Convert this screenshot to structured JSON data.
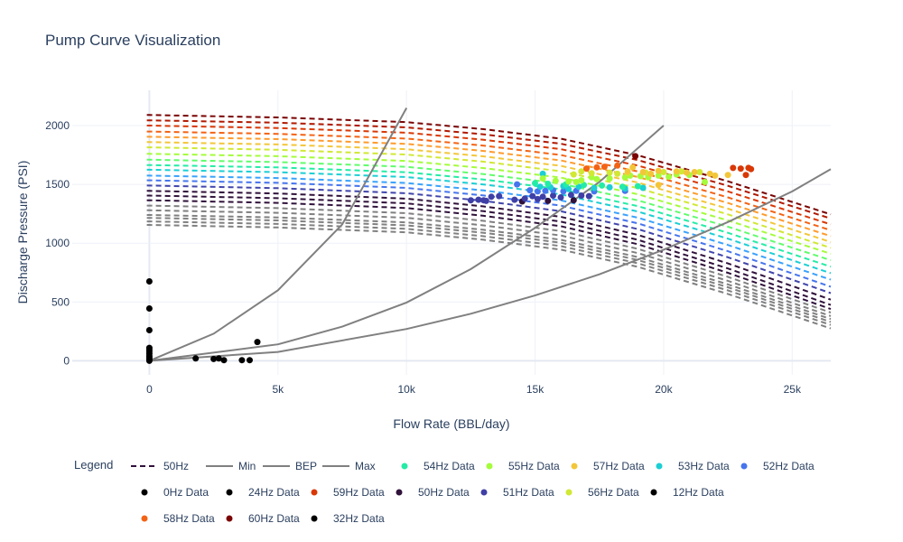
{
  "chart_data": {
    "type": "line",
    "title": "Pump Curve Visualization",
    "xlabel": "Flow Rate (BBL/day)",
    "ylabel": "Discharge Pressure (PSI)",
    "xlim": [
      -3000,
      26500
    ],
    "ylim": [
      -120,
      2300
    ],
    "x_ticks": [
      0,
      5000,
      10000,
      15000,
      20000,
      25000
    ],
    "x_tick_labels": [
      "0",
      "5k",
      "10k",
      "15k",
      "20k",
      "25k"
    ],
    "y_ticks": [
      0,
      500,
      1000,
      1500,
      2000
    ],
    "y_tick_labels": [
      "0",
      "500",
      "1000",
      "1500",
      "2000"
    ],
    "grid": true,
    "legend_title": "Legend",
    "legend_position": "bottom",
    "pump_curves": {
      "x_end": 26500,
      "shape_drop_fraction": [
        0,
        0.01,
        0.03,
        0.06,
        0.1,
        0.17,
        0.28,
        0.42
      ],
      "shape_x": [
        0,
        5000,
        10000,
        13000,
        16000,
        19000,
        22500,
        26500
      ],
      "curves": [
        {
          "hz": 39,
          "p0": 1155,
          "p_end": 275,
          "color": "#808080"
        },
        {
          "hz": 40,
          "p0": 1185,
          "p_end": 305,
          "color": "#808080"
        },
        {
          "hz": 41,
          "p0": 1215,
          "p_end": 330,
          "color": "#808080"
        },
        {
          "hz": 42,
          "p0": 1240,
          "p_end": 355,
          "color": "#808080"
        },
        {
          "hz": 43,
          "p0": 1280,
          "p_end": 380,
          "color": "#808080"
        },
        {
          "hz": 44,
          "p0": 1320,
          "p_end": 410,
          "color": "#808080"
        },
        {
          "hz": 45,
          "p0": 1365,
          "p_end": 440,
          "color": "#30123b"
        },
        {
          "hz": 46,
          "p0": 1405,
          "p_end": 475,
          "color": "#30123b"
        },
        {
          "hz": 47,
          "p0": 1445,
          "p_end": 520,
          "color": "#30123b"
        },
        {
          "hz": 48,
          "p0": 1490,
          "p_end": 575,
          "color": "#4145ab"
        },
        {
          "hz": 49,
          "p0": 1535,
          "p_end": 630,
          "color": "#4675ed"
        },
        {
          "hz": 50,
          "p0": 1575,
          "p_end": 690,
          "color": "#39a2fc"
        },
        {
          "hz": 51,
          "p0": 1625,
          "p_end": 745,
          "color": "#1bcfd4"
        },
        {
          "hz": 52,
          "p0": 1665,
          "p_end": 800,
          "color": "#24eca6"
        },
        {
          "hz": 53,
          "p0": 1710,
          "p_end": 855,
          "color": "#61fc6c"
        },
        {
          "hz": 54,
          "p0": 1760,
          "p_end": 910,
          "color": "#a4fc3b"
        },
        {
          "hz": 55,
          "p0": 1815,
          "p_end": 960,
          "color": "#d1e834"
        },
        {
          "hz": 56,
          "p0": 1860,
          "p_end": 1010,
          "color": "#f3c63a"
        },
        {
          "hz": 57,
          "p0": 1905,
          "p_end": 1060,
          "color": "#fe9b2d"
        },
        {
          "hz": 58,
          "p0": 1950,
          "p_end": 1110,
          "color": "#f36315"
        },
        {
          "hz": 59,
          "p0": 2000,
          "p_end": 1160,
          "color": "#d93806"
        },
        {
          "hz": 60,
          "p0": 2045,
          "p_end": 1210,
          "color": "#b11901"
        },
        {
          "hz": 61,
          "p0": 2090,
          "p_end": 1245,
          "color": "#7a0403"
        }
      ]
    },
    "operating_lines": [
      {
        "name": "Min",
        "color": "#808080",
        "x": [
          0,
          2500,
          5000,
          7500,
          10000
        ],
        "y": [
          0,
          230,
          600,
          1160,
          2150
        ]
      },
      {
        "name": "BEP",
        "color": "#808080",
        "x": [
          0,
          5000,
          7500,
          10000,
          12500,
          15000,
          17500,
          20000
        ],
        "y": [
          0,
          140,
          290,
          495,
          780,
          1130,
          1520,
          2000
        ]
      },
      {
        "name": "Max",
        "color": "#808080",
        "x": [
          0,
          5000,
          10000,
          12500,
          15000,
          17500,
          20000,
          22500,
          25000,
          26500
        ],
        "y": [
          0,
          75,
          270,
          400,
          555,
          735,
          945,
          1180,
          1440,
          1630
        ]
      }
    ],
    "scatter_series": [
      {
        "name": "0Hz Data",
        "color": "#000000",
        "points": [
          [
            0,
            0
          ],
          [
            0,
            10
          ],
          [
            0,
            25
          ],
          [
            0,
            40
          ],
          [
            0,
            60
          ],
          [
            0,
            80
          ],
          [
            0,
            95
          ],
          [
            0,
            110
          ],
          [
            0,
            260
          ],
          [
            0,
            445
          ],
          [
            0,
            675
          ]
        ]
      },
      {
        "name": "24Hz Data",
        "color": "#000000",
        "points": [
          [
            1800,
            20
          ],
          [
            2500,
            15
          ],
          [
            2700,
            20
          ]
        ]
      },
      {
        "name": "12Hz Data",
        "color": "#000000",
        "points": [
          [
            2900,
            5
          ],
          [
            3600,
            5
          ],
          [
            3900,
            5
          ]
        ]
      },
      {
        "name": "32Hz Data",
        "color": "#000000",
        "points": [
          [
            4200,
            160
          ]
        ]
      },
      {
        "name": "50Hz Data",
        "color": "#30123b",
        "points": [
          [
            14500,
            1355
          ],
          [
            15500,
            1360
          ],
          [
            16500,
            1365
          ]
        ]
      },
      {
        "name": "51Hz Data",
        "color": "#3f3fa6",
        "points": [
          [
            12500,
            1365
          ],
          [
            12800,
            1370
          ],
          [
            13000,
            1365
          ],
          [
            13300,
            1395
          ],
          [
            13600,
            1400
          ],
          [
            14200,
            1370
          ],
          [
            14600,
            1380
          ],
          [
            14900,
            1400
          ],
          [
            15300,
            1395
          ],
          [
            15700,
            1405
          ],
          [
            16000,
            1390
          ],
          [
            16400,
            1410
          ],
          [
            16800,
            1405
          ],
          [
            17100,
            1400
          ],
          [
            13100,
            1360
          ],
          [
            15100,
            1375
          ]
        ]
      },
      {
        "name": "52Hz Data",
        "color": "#4675ed",
        "points": [
          [
            14800,
            1450
          ],
          [
            15100,
            1440
          ],
          [
            15400,
            1445
          ],
          [
            15700,
            1450
          ],
          [
            16100,
            1440
          ],
          [
            16600,
            1445
          ],
          [
            17300,
            1440
          ],
          [
            18500,
            1445
          ],
          [
            14300,
            1500
          ]
        ]
      },
      {
        "name": "53Hz Data",
        "color": "#1bcfd4",
        "points": [
          [
            15200,
            1480
          ],
          [
            15600,
            1475
          ],
          [
            16100,
            1485
          ],
          [
            16700,
            1480
          ],
          [
            17300,
            1470
          ],
          [
            17900,
            1475
          ],
          [
            18500,
            1465
          ],
          [
            19200,
            1470
          ],
          [
            16300,
            1460
          ],
          [
            15300,
            1590
          ]
        ]
      },
      {
        "name": "54Hz Data",
        "color": "#24eca6",
        "points": [
          [
            15000,
            1510
          ],
          [
            15500,
            1505
          ],
          [
            16200,
            1500
          ],
          [
            16900,
            1495
          ],
          [
            17600,
            1490
          ],
          [
            18400,
            1480
          ],
          [
            19000,
            1485
          ]
        ]
      },
      {
        "name": "55Hz Data",
        "color": "#a4fc3b",
        "points": [
          [
            15800,
            1530
          ],
          [
            16300,
            1525
          ],
          [
            16800,
            1535
          ],
          [
            17400,
            1545
          ],
          [
            17900,
            1550
          ],
          [
            18500,
            1560
          ],
          [
            19100,
            1570
          ],
          [
            19800,
            1575
          ],
          [
            20500,
            1585
          ],
          [
            21000,
            1580
          ],
          [
            15300,
            1550
          ],
          [
            16600,
            1520
          ],
          [
            17200,
            1560
          ],
          [
            18700,
            1575
          ],
          [
            19400,
            1560
          ],
          [
            20200,
            1565
          ],
          [
            21600,
            1520
          ]
        ]
      },
      {
        "name": "56Hz Data",
        "color": "#d1e834",
        "points": [
          [
            16500,
            1585
          ],
          [
            17200,
            1595
          ],
          [
            17900,
            1600
          ],
          [
            18600,
            1595
          ],
          [
            19300,
            1600
          ],
          [
            20000,
            1605
          ],
          [
            20700,
            1610
          ],
          [
            21400,
            1605
          ],
          [
            16800,
            1610
          ],
          [
            18200,
            1590
          ]
        ]
      },
      {
        "name": "57Hz Data",
        "color": "#f3c63a",
        "points": [
          [
            18600,
            1610
          ],
          [
            19200,
            1605
          ],
          [
            19800,
            1615
          ],
          [
            20500,
            1610
          ],
          [
            21200,
            1605
          ],
          [
            21800,
            1590
          ],
          [
            22500,
            1580
          ],
          [
            19500,
            1590
          ],
          [
            20900,
            1600
          ],
          [
            22000,
            1575
          ],
          [
            18800,
            1645
          ],
          [
            19800,
            1495
          ]
        ]
      },
      {
        "name": "58Hz Data",
        "color": "#f36315",
        "points": [
          [
            17000,
            1635
          ],
          [
            17400,
            1645
          ],
          [
            17700,
            1650
          ],
          [
            18200,
            1660
          ]
        ]
      },
      {
        "name": "59Hz Data",
        "color": "#d93806",
        "points": [
          [
            22700,
            1640
          ],
          [
            23000,
            1635
          ],
          [
            23300,
            1640
          ],
          [
            23400,
            1630
          ],
          [
            23200,
            1580
          ]
        ]
      },
      {
        "name": "60Hz Data",
        "color": "#7a0403",
        "points": [
          [
            18900,
            1740
          ]
        ]
      }
    ],
    "legend": [
      {
        "label": "50Hz",
        "kind": "dash",
        "color": "#30123b"
      },
      {
        "label": "Min",
        "kind": "line",
        "color": "#808080"
      },
      {
        "label": "BEP",
        "kind": "line",
        "color": "#808080"
      },
      {
        "label": "Max",
        "kind": "line",
        "color": "#808080"
      },
      {
        "label": "54Hz Data",
        "kind": "dot",
        "color": "#24eca6"
      },
      {
        "label": "55Hz Data",
        "kind": "dot",
        "color": "#a4fc3b"
      },
      {
        "label": "57Hz Data",
        "kind": "dot",
        "color": "#f3c63a"
      },
      {
        "label": "53Hz Data",
        "kind": "dot",
        "color": "#1bcfd4"
      },
      {
        "label": "52Hz Data",
        "kind": "dot",
        "color": "#4675ed"
      },
      {
        "label": "0Hz Data",
        "kind": "dot",
        "color": "#000000"
      },
      {
        "label": "24Hz Data",
        "kind": "dot",
        "color": "#000000"
      },
      {
        "label": "59Hz Data",
        "kind": "dot",
        "color": "#d93806"
      },
      {
        "label": "50Hz Data",
        "kind": "dot",
        "color": "#30123b"
      },
      {
        "label": "51Hz Data",
        "kind": "dot",
        "color": "#3f3fa6"
      },
      {
        "label": "56Hz Data",
        "kind": "dot",
        "color": "#d1e834"
      },
      {
        "label": "12Hz Data",
        "kind": "dot",
        "color": "#000000"
      },
      {
        "label": "58Hz Data",
        "kind": "dot",
        "color": "#f36315"
      },
      {
        "label": "60Hz Data",
        "kind": "dot",
        "color": "#7a0403"
      },
      {
        "label": "32Hz Data",
        "kind": "dot",
        "color": "#000000"
      }
    ]
  }
}
